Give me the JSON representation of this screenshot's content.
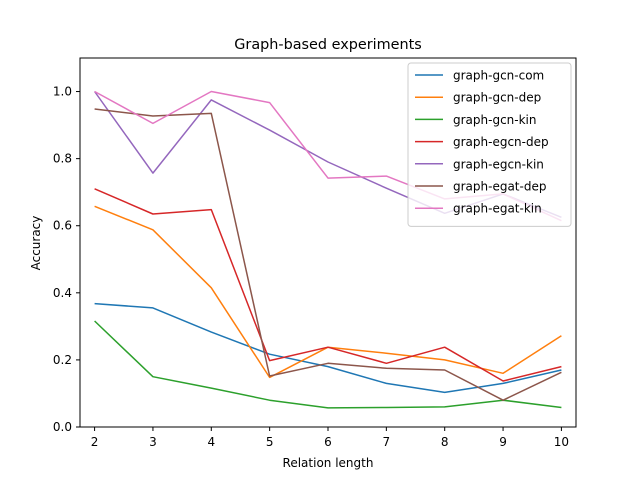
{
  "chart_data": {
    "type": "line",
    "title": "Graph-based experiments",
    "xlabel": "Relation length",
    "ylabel": "Accuracy",
    "x": [
      2,
      3,
      4,
      5,
      6,
      7,
      8,
      9,
      10
    ],
    "xlim": [
      1.75,
      10.25
    ],
    "ylim": [
      0.0,
      1.1
    ],
    "xticks": [
      2,
      3,
      4,
      5,
      6,
      7,
      8,
      9,
      10
    ],
    "yticks": [
      0.0,
      0.2,
      0.4,
      0.6,
      0.8,
      1.0
    ],
    "ytick_labels": [
      "0.0",
      "0.2",
      "0.4",
      "0.6",
      "0.8",
      "1.0"
    ],
    "grid": false,
    "legend_position": "top-right",
    "series": [
      {
        "name": "graph-gcn-com",
        "color": "#1f77b4",
        "values": [
          0.368,
          0.355,
          0.283,
          0.217,
          0.18,
          0.13,
          0.103,
          0.13,
          0.17
        ]
      },
      {
        "name": "graph-gcn-dep",
        "color": "#ff7f0e",
        "values": [
          0.658,
          0.588,
          0.415,
          0.148,
          0.238,
          0.22,
          0.2,
          0.16,
          0.272
        ]
      },
      {
        "name": "graph-gcn-kin",
        "color": "#2ca02c",
        "values": [
          0.316,
          0.15,
          0.116,
          0.08,
          0.057,
          0.058,
          0.06,
          0.08,
          0.058
        ]
      },
      {
        "name": "graph-egcn-dep",
        "color": "#d62728",
        "values": [
          0.71,
          0.635,
          0.648,
          0.198,
          0.238,
          0.19,
          0.238,
          0.137,
          0.18
        ]
      },
      {
        "name": "graph-egcn-kin",
        "color": "#9467bd",
        "values": [
          1.0,
          0.757,
          0.975,
          0.885,
          0.79,
          0.712,
          0.637,
          0.695,
          0.625
        ]
      },
      {
        "name": "graph-egat-dep",
        "color": "#8c564b",
        "values": [
          0.948,
          0.927,
          0.935,
          0.152,
          0.19,
          0.175,
          0.17,
          0.08,
          0.163
        ]
      },
      {
        "name": "graph-egat-kin",
        "color": "#e377c2",
        "values": [
          1.0,
          0.905,
          1.0,
          0.967,
          0.742,
          0.748,
          0.68,
          0.695,
          0.615
        ]
      }
    ]
  }
}
